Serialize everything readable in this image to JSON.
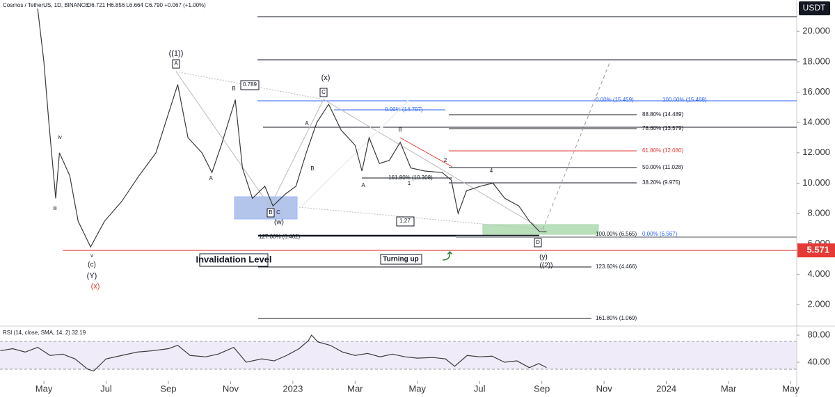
{
  "chart_data": [
    {
      "type": "line",
      "title": "Cosmos / TetherUS, 1D, BINANCE",
      "ohlc": "O6.721 H6.856 L6.664 C6.790 +0.067 (+1.00%)",
      "currency": "USDT",
      "color": "#3a3a3a",
      "x": [
        -0.2,
        0,
        0.16,
        0.38,
        0.5,
        0.83,
        1.1,
        1.5,
        1.95,
        2.5,
        3.06,
        3.6,
        4.3,
        4.63,
        5.08,
        5.4,
        5.7,
        6.15,
        6.38,
        6.7,
        7.1,
        7.36,
        7.77,
        8.1,
        8.43,
        8.77,
        9.15,
        9.55,
        10.0,
        10.22,
        10.45,
        10.78,
        11.1,
        11.45,
        11.79,
        12.24,
        12.8,
        13.09,
        13.31,
        13.58,
        14.03,
        14.43,
        14.81,
        15.26,
        15.6,
        15.93,
        16.15
      ],
      "values": [
        21.5,
        18,
        14,
        9,
        12,
        10.5,
        7.5,
        5.8,
        7.5,
        8.8,
        10.5,
        12,
        16.5,
        13,
        12,
        10.7,
        12.5,
        15.5,
        11,
        9,
        9.8,
        8.5,
        9.3,
        9.8,
        12,
        14,
        15.2,
        13.5,
        12.5,
        10.8,
        13,
        11.3,
        11.5,
        12.7,
        11,
        10.8,
        10.7,
        10.2,
        8,
        9.5,
        9.8,
        10,
        9,
        8.5,
        7.5,
        6.8,
        6.79
      ],
      "xlim": [
        -1.41,
        24.19
      ],
      "ylim": [
        0.63,
        22.07
      ],
      "xticks": [
        {
          "value": 0,
          "label": "May"
        },
        {
          "value": 2,
          "label": "Jul"
        },
        {
          "value": 4,
          "label": "Sep"
        },
        {
          "value": 6,
          "label": "Nov"
        },
        {
          "value": 8,
          "label": "2023"
        },
        {
          "value": 10,
          "label": "Mar"
        },
        {
          "value": 12,
          "label": "May"
        },
        {
          "value": 14,
          "label": "Jul"
        },
        {
          "value": 16,
          "label": "Sep"
        },
        {
          "value": 18,
          "label": "Nov"
        },
        {
          "value": 20,
          "label": "2024"
        },
        {
          "value": 22,
          "label": "Mar"
        },
        {
          "value": 24,
          "label": "May"
        }
      ],
      "yticks": [
        {
          "value": 2,
          "label": "2.000"
        },
        {
          "value": 4,
          "label": "4.000"
        },
        {
          "value": 6,
          "label": "6.000"
        },
        {
          "value": 8,
          "label": "8.000"
        },
        {
          "value": 10,
          "label": "10.000"
        },
        {
          "value": 12,
          "label": "12.000"
        },
        {
          "value": 14,
          "label": "14.000"
        },
        {
          "value": 16,
          "label": "16.000"
        },
        {
          "value": 18,
          "label": "18.000"
        },
        {
          "value": 20,
          "label": "20.000"
        }
      ],
      "price_marker": 5.571,
      "price_marker_color": "#e53935",
      "annotations": [
        "((1))",
        "A",
        "0.789",
        "(x)",
        "C",
        "B",
        "iv",
        "iii",
        "v",
        "(c)",
        "(Y)",
        "(x)",
        "Invalidation Level",
        "Turning up",
        "1.27",
        "(w)",
        "B",
        "C",
        "D",
        "(y)",
        "((2))",
        "161.80% (10.308)",
        "100.00% (15.488)",
        "0.00% (15.459)",
        "0.00% (14.797)",
        "88.80% (14.489)",
        "78.60% (13.579)",
        "61.80% (12.080)",
        "50.00% (11.028)",
        "38.20% (9.975)",
        "100.00% (6.565)",
        "0.00% (6.567)",
        "127.00% (6.462)",
        "123.60% (4.466)",
        "161.80% (1.069)",
        "A",
        "A",
        "B",
        "A",
        "B",
        "2",
        "4",
        "1"
      ]
    },
    {
      "type": "line",
      "title": "RSI (14, close, SMA, 14, 2) 32.19",
      "color": "#3a3a3a",
      "x": [
        -1.4,
        -1.0,
        -0.6,
        -0.2,
        0.2,
        0.6,
        1.0,
        1.4,
        1.6,
        2.0,
        2.5,
        3.0,
        3.5,
        4.0,
        4.3,
        4.7,
        5.2,
        5.6,
        6.1,
        6.5,
        7.0,
        7.4,
        7.8,
        8.2,
        8.5,
        8.6,
        8.8,
        9.2,
        9.6,
        10.0,
        10.4,
        10.8,
        11.2,
        11.6,
        12.0,
        12.5,
        12.9,
        13.2,
        13.6,
        14.0,
        14.4,
        14.8,
        15.2,
        15.6,
        15.9,
        16.15
      ],
      "values": [
        57,
        60,
        55,
        62,
        50,
        52,
        45,
        30,
        27,
        45,
        50,
        55,
        57,
        60,
        65,
        50,
        48,
        52,
        62,
        40,
        45,
        42,
        50,
        60,
        72,
        80,
        70,
        65,
        55,
        50,
        53,
        48,
        52,
        48,
        46,
        47,
        45,
        34,
        50,
        48,
        49,
        40,
        42,
        32,
        38,
        32.19
      ],
      "xlim": [
        -1.41,
        24.19
      ],
      "ylim": [
        12.3,
        91.3
      ],
      "yticks": [
        {
          "value": 80,
          "label": "80.00"
        },
        {
          "value": 40,
          "label": "40.00"
        }
      ]
    }
  ]
}
